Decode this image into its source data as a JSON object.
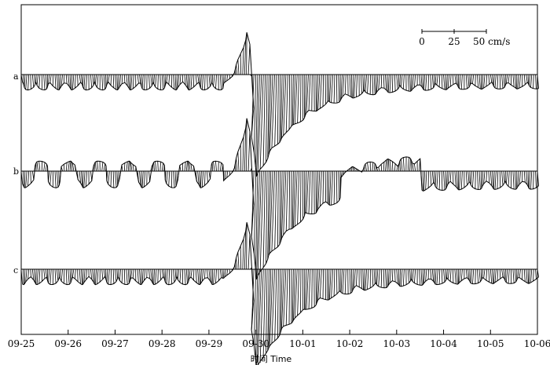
{
  "chart_data": {
    "type": "line",
    "subtype": "current-vector-stick-plot",
    "xlabel": "时间 Time",
    "x_ticks": [
      "09-25",
      "09-26",
      "09-27",
      "09-28",
      "09-29",
      "09-30",
      "10-01",
      "10-02",
      "10-03",
      "10-04",
      "10-05",
      "10-06"
    ],
    "scale_bar": {
      "labels": [
        "0",
        "25",
        "50 cm/s"
      ],
      "unit": "cm/s",
      "max": 50
    },
    "series": [
      {
        "name": "a",
        "pre_peak_oscillation_amplitude_cm_s": 12,
        "peak": {
          "date": "09-29",
          "north_cm_s": 36
        },
        "post_peak": {
          "date": "09-30",
          "south_cm_s": -90
        },
        "late_oscillation_amplitude_cm_s": 11
      },
      {
        "name": "b",
        "pre_peak_oscillation_amplitude_cm_s": 13,
        "peak": {
          "date": "09-29",
          "north_cm_s": 45
        },
        "post_peak": {
          "date": "09-30",
          "south_cm_s": -95
        },
        "late_oscillation_amplitude_cm_s": 14
      },
      {
        "name": "c",
        "pre_peak_oscillation_amplitude_cm_s": 12,
        "peak": {
          "date": "09-29",
          "north_cm_s": 40
        },
        "post_peak": {
          "date": "09-30",
          "south_cm_s": -88
        },
        "late_oscillation_amplitude_cm_s": 11
      }
    ]
  }
}
